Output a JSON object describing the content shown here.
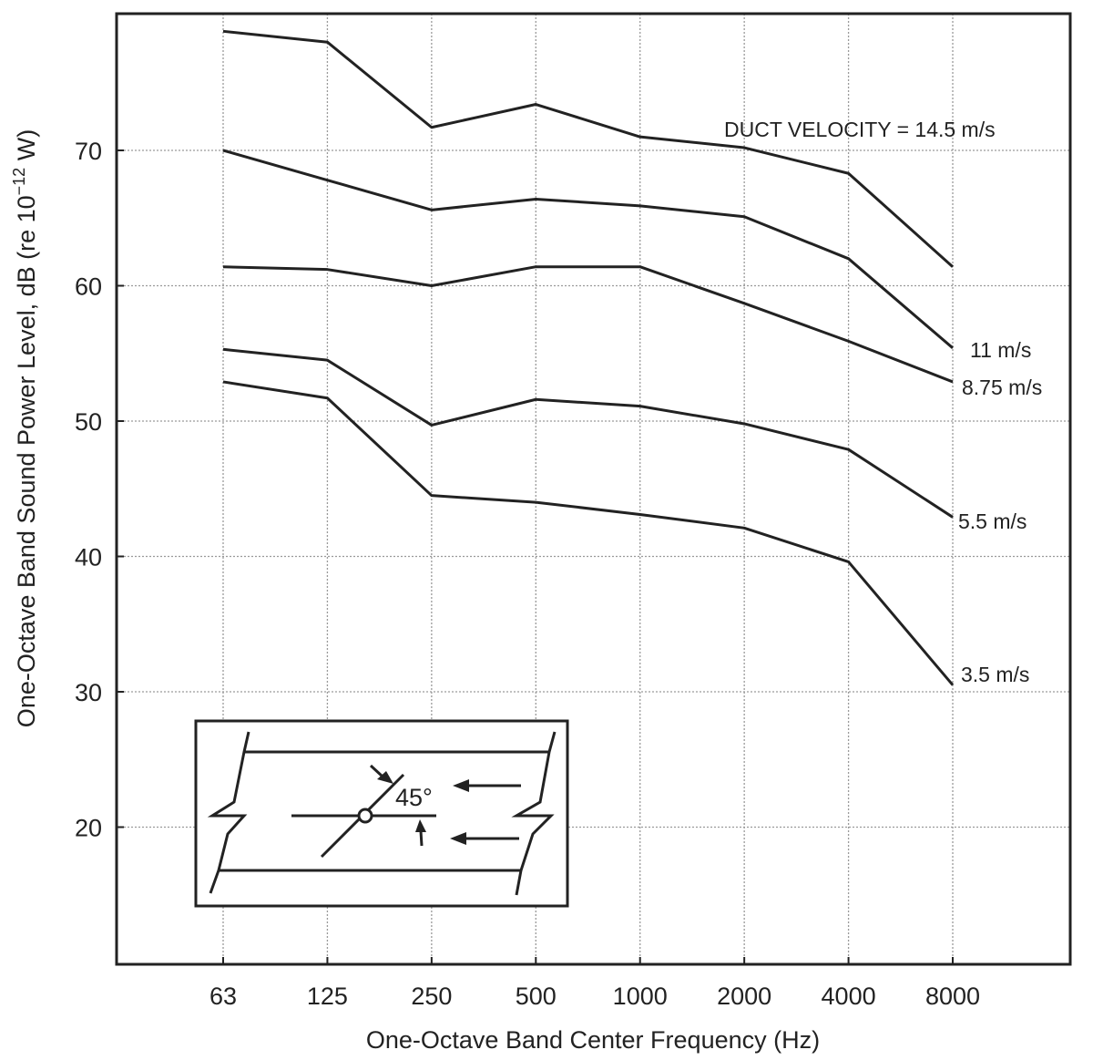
{
  "chart_data": {
    "type": "line",
    "xlabel": "One-Octave Band Center Frequency (Hz)",
    "ylabel": {
      "main": "One-Octave Band Sound Power Level, dB (re 10",
      "sup": "−12",
      "tail": " W)"
    },
    "categories": [
      "63",
      "125",
      "250",
      "500",
      "1000",
      "2000",
      "4000",
      "8000"
    ],
    "y_ticks": [
      20,
      30,
      40,
      50,
      60,
      70
    ],
    "ylim": [
      10,
      80
    ],
    "grid": true,
    "series": [
      {
        "name": "DUCT VELOCITY = 14.5 m/s",
        "values": [
          78.8,
          78.0,
          71.7,
          73.4,
          71.0,
          70.2,
          68.3,
          61.4
        ]
      },
      {
        "name": "11 m/s",
        "values": [
          70.0,
          67.8,
          65.6,
          66.4,
          65.9,
          65.1,
          62.0,
          55.4
        ]
      },
      {
        "name": "8.75 m/s",
        "values": [
          61.4,
          61.2,
          60.0,
          61.4,
          61.4,
          58.7,
          55.9,
          52.9
        ]
      },
      {
        "name": "5.5 m/s",
        "values": [
          55.3,
          54.5,
          49.7,
          51.6,
          51.1,
          49.8,
          47.9,
          42.9
        ]
      },
      {
        "name": "3.5 m/s",
        "values": [
          52.9,
          51.7,
          44.5,
          44.0,
          43.1,
          42.1,
          39.6,
          30.5
        ]
      }
    ],
    "inset": {
      "angle_label": "45°",
      "icon": "duct-damper-diagram"
    }
  }
}
